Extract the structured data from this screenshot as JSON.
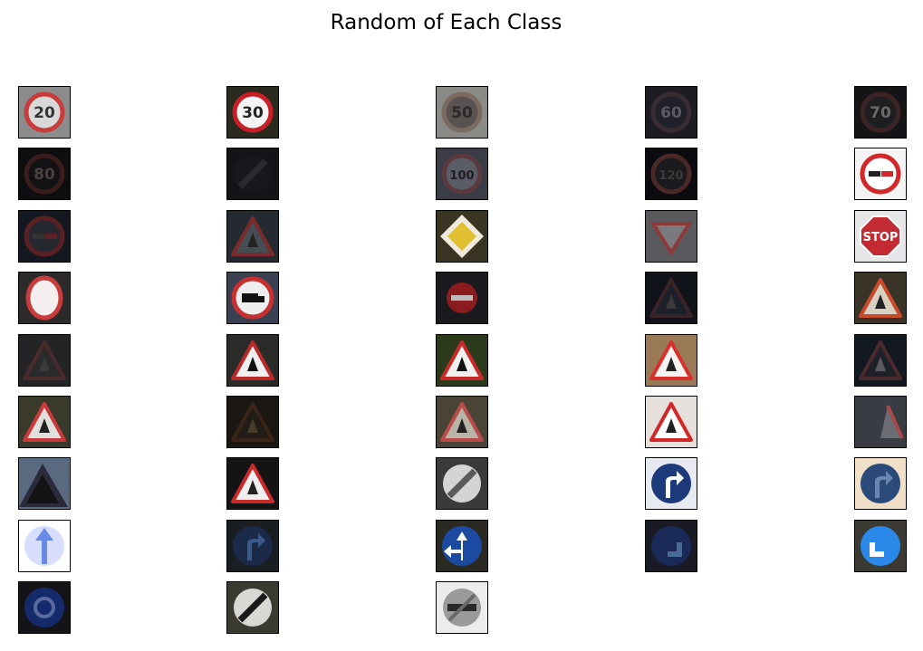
{
  "title": "Random of Each Class",
  "num_classes": 43,
  "columns": 5,
  "tiles": [
    {
      "name": "speed-limit-20",
      "bg": "#8c8c8c",
      "icon": "circle-text",
      "text": "20",
      "fg": "#c83c3c",
      "ink": "#333333",
      "fill": "#d8d8d8"
    },
    {
      "name": "speed-limit-30",
      "bg": "#2a2a1e",
      "icon": "circle-text",
      "text": "30",
      "fg": "#c81e28",
      "ink": "#222222",
      "fill": "#f4f4f4"
    },
    {
      "name": "speed-limit-50",
      "bg": "#8a8a86",
      "icon": "circle-text",
      "text": "50",
      "fg": "#7a6a60",
      "ink": "#2a2a2a",
      "fill": "#5a5250"
    },
    {
      "name": "speed-limit-60",
      "bg": "#1c1c22",
      "icon": "circle-text",
      "text": "60",
      "fg": "#3a2c34",
      "ink": "#5a5a66",
      "fill": "#20202a"
    },
    {
      "name": "speed-limit-70",
      "bg": "#141416",
      "icon": "circle-text",
      "text": "70",
      "fg": "#3c2424",
      "ink": "#6a6a6a",
      "fill": "#1e1e20"
    },
    {
      "name": "speed-limit-80",
      "bg": "#0e0e10",
      "icon": "circle-text",
      "text": "80",
      "fg": "#3a1c1c",
      "ink": "#4a4040",
      "fill": "#121214"
    },
    {
      "name": "end-speed-limit-80",
      "bg": "#141418",
      "icon": "end-limit",
      "text": "",
      "fg": "#2a2a2e",
      "ink": "#2a2a2e",
      "fill": "#18181c"
    },
    {
      "name": "speed-limit-100",
      "bg": "#3a3c46",
      "icon": "circle-text",
      "text": "100",
      "fg": "#5a3a3e",
      "ink": "#1e1e22",
      "fill": "#5a5c66"
    },
    {
      "name": "speed-limit-120",
      "bg": "#0c0c10",
      "icon": "circle-text",
      "text": "120",
      "fg": "#4a2828",
      "ink": "#3a3a3a",
      "fill": "#1a1a1e"
    },
    {
      "name": "no-passing",
      "bg": "#f4f4f4",
      "icon": "no-passing",
      "text": "",
      "fg": "#d2282a",
      "ink": "#222222",
      "fill": "#ffffff"
    },
    {
      "name": "no-passing-trucks",
      "bg": "#141820",
      "icon": "no-passing",
      "text": "",
      "fg": "#5a2024",
      "ink": "#333333",
      "fill": "#262830"
    },
    {
      "name": "right-of-way",
      "bg": "#242a30",
      "icon": "triangle",
      "text": "",
      "fg": "#7a2a2a",
      "ink": "#222222",
      "fill": "#454c52"
    },
    {
      "name": "priority-road",
      "bg": "#3a3422",
      "icon": "diamond",
      "text": "",
      "fg": "#eeeadc",
      "ink": "#c8a82a",
      "fill": "#e0c030"
    },
    {
      "name": "yield",
      "bg": "#5a5a5e",
      "icon": "inv-triangle",
      "text": "",
      "fg": "#8c3a3a",
      "ink": "#333333",
      "fill": "#7a7a7e"
    },
    {
      "name": "stop",
      "bg": "#e6e6e8",
      "icon": "stop",
      "text": "STOP",
      "fg": "#c42a32",
      "ink": "#ffffff",
      "fill": "#c42a32"
    },
    {
      "name": "no-vehicles",
      "bg": "#2c2a2a",
      "icon": "no-vehicles",
      "text": "",
      "fg": "#c83c3c",
      "ink": "#222222",
      "fill": "#f4eeee"
    },
    {
      "name": "no-trucks",
      "bg": "#3a4052",
      "icon": "no-trucks",
      "text": "",
      "fg": "#c83030",
      "ink": "#111111",
      "fill": "#eeeeee"
    },
    {
      "name": "no-entry",
      "bg": "#1a1a1e",
      "icon": "no-entry",
      "text": "",
      "fg": "#8a1c20",
      "ink": "#bbbbbb",
      "fill": "#8a1c20"
    },
    {
      "name": "general-caution",
      "bg": "#10141a",
      "icon": "triangle",
      "text": "",
      "fg": "#3a2226",
      "ink": "#3a3a3a",
      "fill": "#1c2028"
    },
    {
      "name": "curve-left",
      "bg": "#3a3428",
      "icon": "triangle",
      "text": "",
      "fg": "#c84a2a",
      "ink": "#222222",
      "fill": "#d8d0c0"
    },
    {
      "name": "curve-right",
      "bg": "#242426",
      "icon": "triangle",
      "text": "",
      "fg": "#4a2a2a",
      "ink": "#3a3a3a",
      "fill": "#2a2a2c"
    },
    {
      "name": "double-curve",
      "bg": "#2a2a28",
      "icon": "triangle",
      "text": "",
      "fg": "#b82a2a",
      "ink": "#111111",
      "fill": "#eeeeee"
    },
    {
      "name": "bumpy-road",
      "bg": "#2a3a1a",
      "icon": "triangle",
      "text": "",
      "fg": "#c82a2a",
      "ink": "#111111",
      "fill": "#f0f0ee"
    },
    {
      "name": "slippery-road",
      "bg": "#9a7a56",
      "icon": "triangle",
      "text": "",
      "fg": "#d8302a",
      "ink": "#222222",
      "fill": "#f4f4f2"
    },
    {
      "name": "road-narrows",
      "bg": "#121820",
      "icon": "triangle",
      "text": "",
      "fg": "#4a2a2e",
      "ink": "#5a5a60",
      "fill": "#1e2228"
    },
    {
      "name": "road-work",
      "bg": "#3a3a2a",
      "icon": "triangle",
      "text": "",
      "fg": "#c83a3a",
      "ink": "#222222",
      "fill": "#e0e0dc"
    },
    {
      "name": "traffic-signals",
      "bg": "#1a1612",
      "icon": "triangle",
      "text": "",
      "fg": "#3a2418",
      "ink": "#4a3a2a",
      "fill": "#221c16"
    },
    {
      "name": "pedestrians",
      "bg": "#4a4436",
      "icon": "triangle",
      "text": "",
      "fg": "#b84a4a",
      "ink": "#222222",
      "fill": "#b8b4a8"
    },
    {
      "name": "children-crossing",
      "bg": "#e6e0dc",
      "icon": "triangle",
      "text": "",
      "fg": "#d2282a",
      "ink": "#222222",
      "fill": "#ffffff"
    },
    {
      "name": "bicycles-crossing",
      "bg": "#3a3c44",
      "icon": "triangle-partial",
      "text": "",
      "fg": "#a84848",
      "ink": "#777777",
      "fill": "#6a6c74"
    },
    {
      "name": "ice-snow",
      "bg": "#5a6a80",
      "icon": "triangle-dark",
      "text": "",
      "fg": "#2a2a3a",
      "ink": "#141414",
      "fill": "#3a3a46"
    },
    {
      "name": "wild-animals",
      "bg": "#141414",
      "icon": "triangle",
      "text": "",
      "fg": "#c82a2a",
      "ink": "#222222",
      "fill": "#eeeeee"
    },
    {
      "name": "end-all-limits",
      "bg": "#3a3a3a",
      "icon": "end-limit",
      "text": "",
      "fg": "#c8c8c8",
      "ink": "#5a5a5a",
      "fill": "#d4d4d4"
    },
    {
      "name": "turn-right-ahead",
      "bg": "#e8eaf2",
      "icon": "blue-arrow",
      "text": "",
      "fg": "#1c3a7a",
      "ink": "#ffffff",
      "fill": "#1c3a7a"
    },
    {
      "name": "turn-left-ahead",
      "bg": "#f0e0c8",
      "icon": "blue-arrow",
      "text": "",
      "fg": "#2a4a7a",
      "ink": "#6a86b0",
      "fill": "#2a4a7a"
    },
    {
      "name": "ahead-only",
      "bg": "#ffffff",
      "icon": "blue-arrow-up",
      "text": "",
      "fg": "#6a8ae8",
      "ink": "#2a3aa0",
      "fill": "#d8deff"
    },
    {
      "name": "go-straight-or-right",
      "bg": "#1a1e22",
      "icon": "blue-arrow",
      "text": "",
      "fg": "#1a2a48",
      "ink": "#3a5a8a",
      "fill": "#1a2a48"
    },
    {
      "name": "go-straight-or-left",
      "bg": "#2a2a22",
      "icon": "blue-split",
      "text": "",
      "fg": "#1c4aa0",
      "ink": "#ffffff",
      "fill": "#1c4aa0"
    },
    {
      "name": "keep-right",
      "bg": "#1a1a24",
      "icon": "blue-arrow-down",
      "text": "",
      "fg": "#1a2a58",
      "ink": "#4a6a9a",
      "fill": "#1a2a58"
    },
    {
      "name": "keep-left",
      "bg": "#3a3a32",
      "icon": "blue-arrow-down",
      "text": "",
      "fg": "#2a88e8",
      "ink": "#ffffff",
      "fill": "#2a88e8"
    },
    {
      "name": "roundabout",
      "bg": "#141418",
      "icon": "roundabout",
      "text": "",
      "fg": "#142a6a",
      "ink": "#5a6aa0",
      "fill": "#142a6a"
    },
    {
      "name": "end-no-passing",
      "bg": "#3a3a30",
      "icon": "end-limit",
      "text": "",
      "fg": "#d8d8d4",
      "ink": "#1a1a1a",
      "fill": "#d8d8d4"
    },
    {
      "name": "end-no-passing-trucks",
      "bg": "#ececec",
      "icon": "end-trucks",
      "text": "",
      "fg": "#6a6a6a",
      "ink": "#2a2a2a",
      "fill": "#9a9a9a"
    }
  ]
}
